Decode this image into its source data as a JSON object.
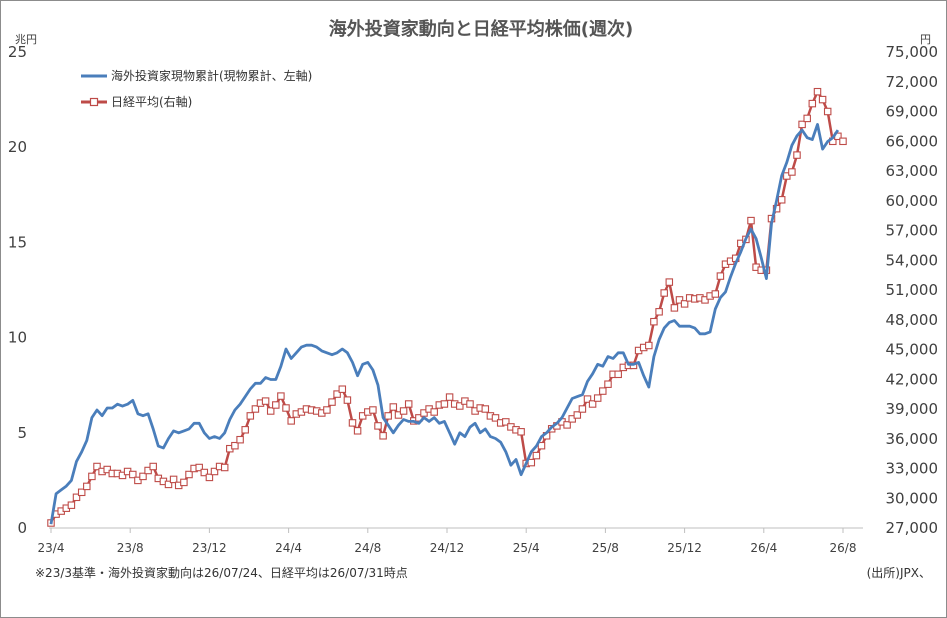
{
  "chart_data": {
    "type": "line",
    "title": "海外投資家動向と日経平均株価(週次)",
    "left_unit": "兆円",
    "right_unit": "円",
    "ylim_left": [
      0,
      25
    ],
    "ylim_right": [
      27000,
      75000
    ],
    "y_ticks_left": [
      "0",
      "5",
      "10",
      "15",
      "20",
      "25"
    ],
    "y_ticks_right": [
      "27,000",
      "30,000",
      "33,000",
      "36,000",
      "39,000",
      "42,000",
      "45,000",
      "48,000",
      "51,000",
      "54,000",
      "57,000",
      "60,000",
      "63,000",
      "66,000",
      "69,000",
      "72,000",
      "75,000"
    ],
    "x_ticks": [
      "23/4",
      "23/8",
      "23/12",
      "24/4",
      "24/8",
      "24/12",
      "25/4",
      "25/8",
      "25/12",
      "26/4",
      "26/8"
    ],
    "legend_position": "top-left",
    "grid": false,
    "series": [
      {
        "name": "海外投資家現物累計(現物累計、左軸)",
        "axis": "left",
        "color": "#4a7ebb",
        "values": [
          0.2,
          1.8,
          2.0,
          2.2,
          2.5,
          3.5,
          4.0,
          4.6,
          5.8,
          6.2,
          5.9,
          6.3,
          6.3,
          6.5,
          6.4,
          6.5,
          6.7,
          6.0,
          5.9,
          6.0,
          5.2,
          4.3,
          4.2,
          4.7,
          5.1,
          5.0,
          5.1,
          5.2,
          5.5,
          5.5,
          5.0,
          4.7,
          4.8,
          4.7,
          5.0,
          5.7,
          6.2,
          6.5,
          6.9,
          7.3,
          7.6,
          7.6,
          7.9,
          7.8,
          7.8,
          8.5,
          9.4,
          8.9,
          9.2,
          9.5,
          9.6,
          9.6,
          9.5,
          9.3,
          9.2,
          9.1,
          9.2,
          9.4,
          9.2,
          8.7,
          8.0,
          8.6,
          8.7,
          8.3,
          7.5,
          5.8,
          5.4,
          5.0,
          5.4,
          5.7,
          5.6,
          5.6,
          5.5,
          5.8,
          5.6,
          5.8,
          5.5,
          5.6,
          5.0,
          4.4,
          5.0,
          4.8,
          5.3,
          5.5,
          5.0,
          5.2,
          4.8,
          4.7,
          4.5,
          4.0,
          3.3,
          3.6,
          2.8,
          3.4,
          4.0,
          4.3,
          4.8,
          5.0,
          5.3,
          5.5,
          5.8,
          6.3,
          6.8,
          6.9,
          7.0,
          7.7,
          8.1,
          8.6,
          8.5,
          9.0,
          8.9,
          9.2,
          9.2,
          8.6,
          8.6,
          8.7,
          8.0,
          7.4,
          9.0,
          9.9,
          10.5,
          10.8,
          10.9,
          10.6,
          10.6,
          10.6,
          10.5,
          10.2,
          10.2,
          10.3,
          11.5,
          12.1,
          12.4,
          13.2,
          13.9,
          14.5,
          15.2,
          15.7,
          15.2,
          14.2,
          13.1,
          16.0,
          17.2,
          18.5,
          19.2,
          20.1,
          20.6,
          20.9,
          20.5,
          20.4,
          21.2,
          19.9,
          20.3,
          20.5,
          20.9
        ]
      },
      {
        "name": "日経平均(右軸)",
        "axis": "right",
        "color": "#be4b48",
        "values": [
          27500,
          28400,
          28700,
          29000,
          29300,
          30100,
          30600,
          31200,
          32200,
          33200,
          32700,
          32900,
          32500,
          32500,
          32300,
          32700,
          32400,
          31800,
          32200,
          32800,
          33200,
          32000,
          31700,
          31400,
          31900,
          31300,
          31600,
          32400,
          33000,
          33100,
          32600,
          32100,
          32700,
          33200,
          33100,
          35000,
          35300,
          35900,
          36900,
          38300,
          39000,
          39600,
          39800,
          38800,
          39400,
          40300,
          39100,
          37800,
          38500,
          38700,
          39000,
          38900,
          38800,
          38600,
          38900,
          39700,
          40500,
          41000,
          39900,
          37600,
          36800,
          38300,
          38700,
          38900,
          37300,
          36300,
          38300,
          39200,
          38400,
          38800,
          39500,
          37800,
          38100,
          38600,
          39000,
          38700,
          39400,
          39500,
          40200,
          39500,
          39300,
          39800,
          39500,
          38800,
          39100,
          39000,
          38300,
          38100,
          37600,
          37700,
          37200,
          36900,
          36700,
          33500,
          33600,
          34300,
          35300,
          36300,
          37000,
          37300,
          37700,
          37400,
          38000,
          38400,
          39000,
          40000,
          39500,
          40100,
          40800,
          41500,
          42500,
          42500,
          43200,
          43400,
          43400,
          44900,
          45200,
          45400,
          47800,
          48800,
          50700,
          51800,
          49200,
          50000,
          49600,
          50200,
          50100,
          50200,
          50000,
          50400,
          50600,
          52400,
          53600,
          53900,
          54200,
          55700,
          56100,
          58000,
          53300,
          53000,
          53000,
          58200,
          59200,
          60100,
          62500,
          62900,
          64600,
          67700,
          68300,
          69800,
          71000,
          70200,
          69000,
          66000,
          66500,
          66000
        ]
      }
    ]
  },
  "footnote": "※23/3基準・海外投資家動向は26/07/24、日経平均は26/07/31時点",
  "source": "(出所)JPX、"
}
